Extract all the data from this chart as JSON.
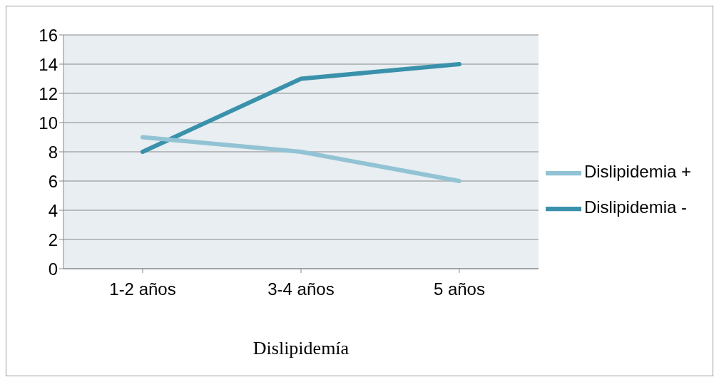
{
  "chart_data": {
    "type": "line",
    "xlabel": "Dislipidemía",
    "categories": [
      "1-2 años",
      "3-4 años",
      "5 años"
    ],
    "series": [
      {
        "name": "Dislipidemia -",
        "color": "#3a91ab",
        "values": [
          8,
          13,
          14
        ]
      },
      {
        "name": "Dislipidemia +",
        "color": "#92c3d5",
        "values": [
          9,
          8,
          6
        ]
      }
    ],
    "ylim": [
      0,
      16
    ],
    "yticks": [
      0,
      2,
      4,
      6,
      8,
      10,
      12,
      14,
      16
    ],
    "grid": "y",
    "legend": "right",
    "marker": "none",
    "line_style": "solid"
  }
}
